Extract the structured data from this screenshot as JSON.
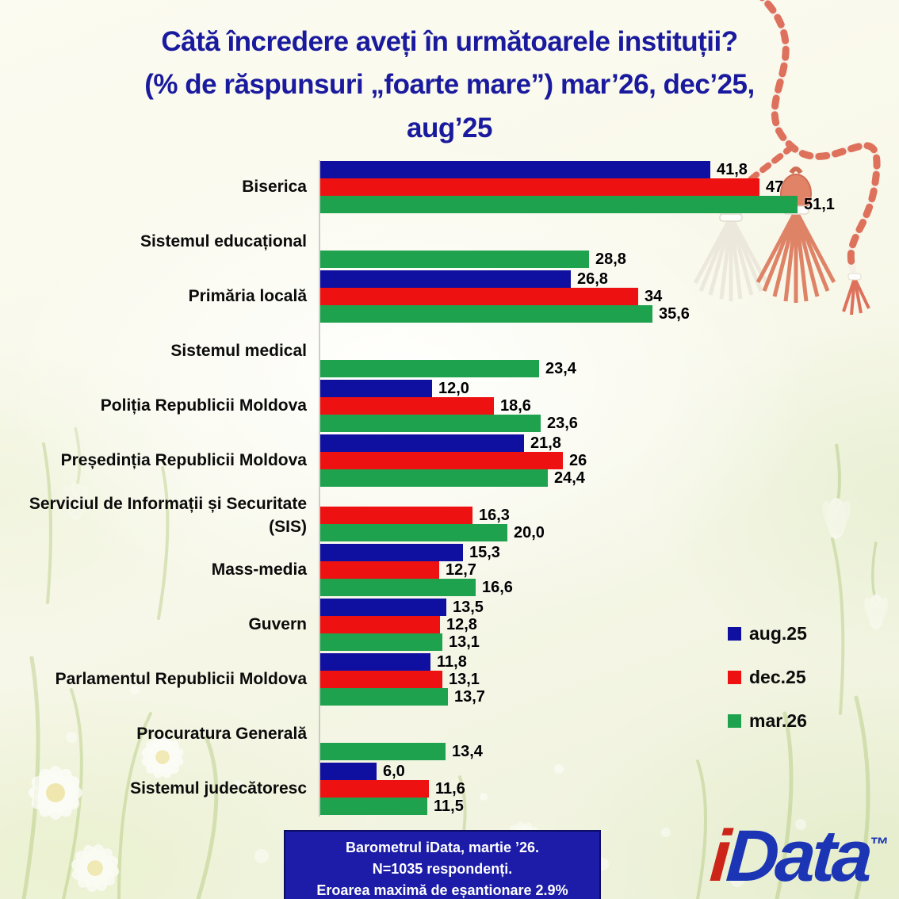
{
  "title": {
    "lines": [
      "Câtă încredere aveți în următoarele instituții?",
      "(% de răspunsuri „foarte mare”) mar’26, dec’25,",
      "aug’25"
    ]
  },
  "chart_data": {
    "type": "bar",
    "orientation": "horizontal",
    "title": "Câtă încredere aveți în următoarele instituții? (% de răspunsuri „foarte mare”) mar’26, dec’25, aug’25",
    "xlim": [
      0,
      55
    ],
    "unit": "%",
    "grid": false,
    "legend_position": "right",
    "series": [
      {
        "name": "aug.25",
        "color": "#0F0FA0"
      },
      {
        "name": "dec.25",
        "color": "#EE1111"
      },
      {
        "name": "mar.26",
        "color": "#1FA24E"
      }
    ],
    "categories": [
      "Biserica",
      "Sistemul educațional",
      "Primăria locală",
      "Sistemul medical",
      "Poliția Republicii Moldova",
      "Președinția Republicii Moldova",
      "Serviciul de Informații și Securitate (SIS)",
      "Mass-media",
      "Guvern",
      "Parlamentul Republicii Moldova",
      "Procuratura Generală",
      "Sistemul judecătoresc"
    ],
    "rows": [
      {
        "label": "Biserica",
        "values": [
          41.8,
          47,
          51.1
        ],
        "display": [
          "41,8",
          "47",
          "51,1"
        ]
      },
      {
        "label": "Sistemul educațional",
        "values": [
          null,
          null,
          28.8
        ],
        "display": [
          null,
          null,
          "28,8"
        ]
      },
      {
        "label": "Primăria locală",
        "values": [
          26.8,
          34,
          35.6
        ],
        "display": [
          "26,8",
          "34",
          "35,6"
        ]
      },
      {
        "label": "Sistemul medical",
        "values": [
          null,
          null,
          23.4
        ],
        "display": [
          null,
          null,
          "23,4"
        ]
      },
      {
        "label": "Poliția Republicii Moldova",
        "values": [
          12.0,
          18.6,
          23.6
        ],
        "display": [
          "12,0",
          "18,6",
          "23,6"
        ]
      },
      {
        "label": "Președinția Republicii Moldova",
        "values": [
          21.8,
          26,
          24.4
        ],
        "display": [
          "21,8",
          "26",
          "24,4"
        ]
      },
      {
        "label": "Serviciul de Informații și Securitate (SIS)",
        "values": [
          null,
          16.3,
          20.0
        ],
        "display": [
          null,
          "16,3",
          "20,0"
        ]
      },
      {
        "label": "Mass-media",
        "values": [
          15.3,
          12.7,
          16.6
        ],
        "display": [
          "15,3",
          "12,7",
          "16,6"
        ]
      },
      {
        "label": "Guvern",
        "values": [
          13.5,
          12.8,
          13.1
        ],
        "display": [
          "13,5",
          "12,8",
          "13,1"
        ]
      },
      {
        "label": "Parlamentul Republicii Moldova",
        "values": [
          11.8,
          13.1,
          13.7
        ],
        "display": [
          "11,8",
          "13,1",
          "13,7"
        ]
      },
      {
        "label": "Procuratura Generală",
        "values": [
          null,
          null,
          13.4
        ],
        "display": [
          null,
          null,
          "13,4"
        ]
      },
      {
        "label": "Sistemul judecătoresc",
        "values": [
          6.0,
          11.6,
          11.5
        ],
        "display": [
          "6,0",
          "11,6",
          "11,5"
        ]
      }
    ]
  },
  "legend": {
    "items": [
      "aug.25",
      "dec.25",
      "mar.26"
    ]
  },
  "footer": {
    "lines": [
      "Barometrul iData, martie ’26.",
      "N=1035 respondenți.",
      "Eroarea maximă de eșantionare 2.9%"
    ]
  },
  "logo": {
    "i": "i",
    "data": "Data",
    "tm": "™"
  },
  "colors": {
    "title": "#1A1A9E",
    "bar_blue": "#0F0FA0",
    "bar_red": "#EE1111",
    "bar_green": "#1FA24E",
    "value_label": "#000000",
    "footer_bg": "#1C1CA8",
    "footer_text": "#FFFFFF",
    "logo_red": "#CC2418",
    "logo_blue": "#1B35B5"
  }
}
